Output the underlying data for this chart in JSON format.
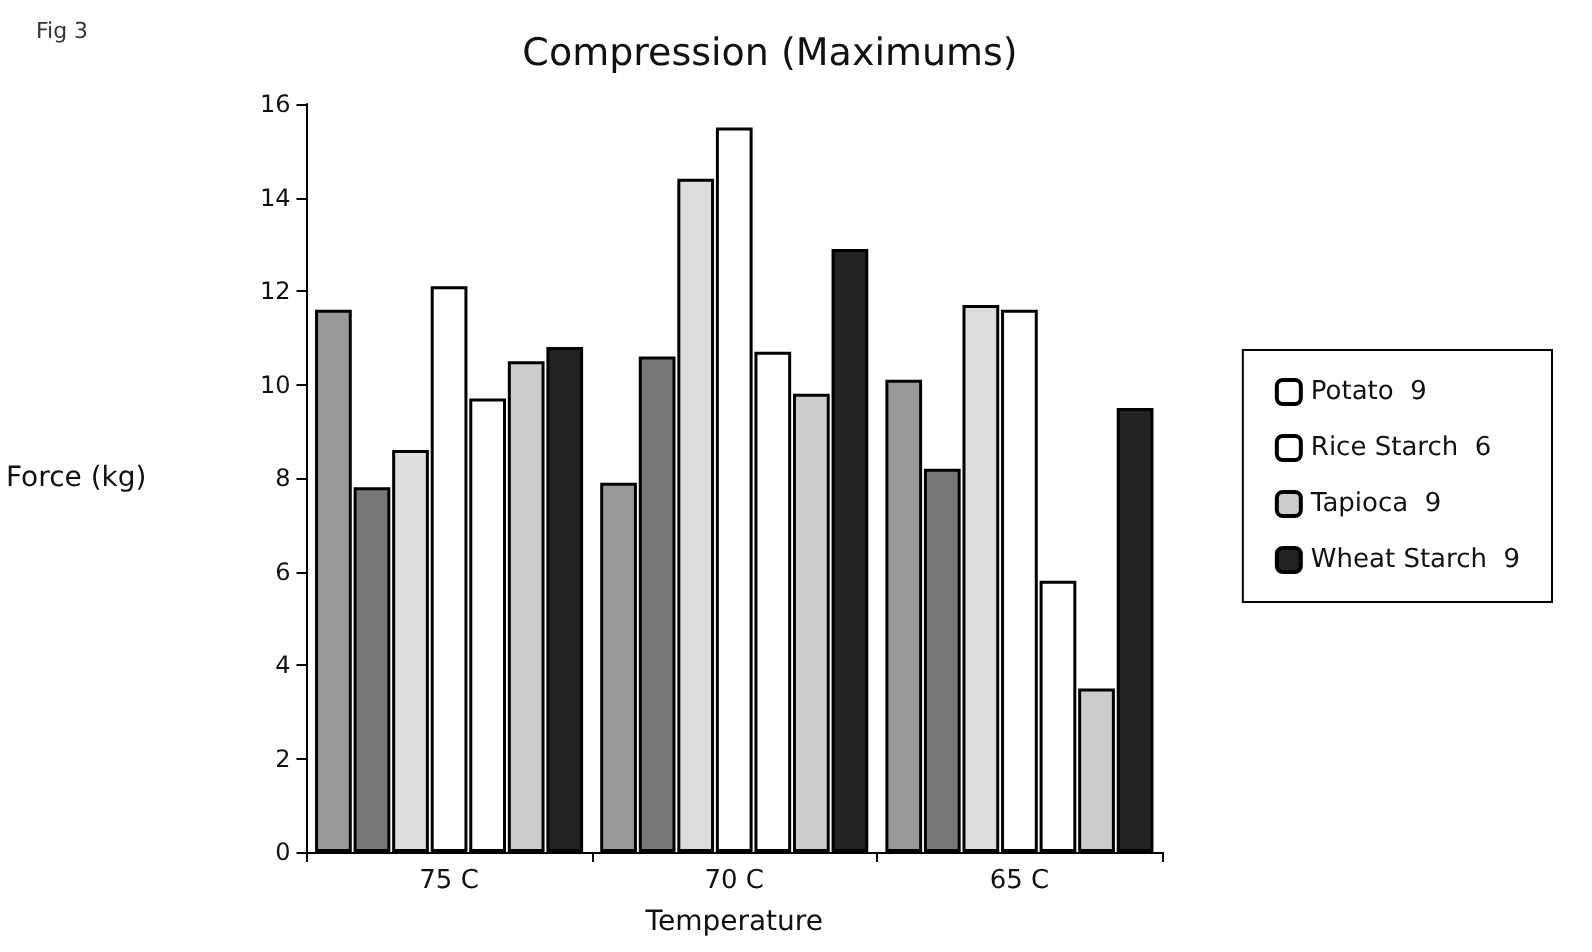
{
  "chart_data": {
    "type": "bar",
    "title": "Compression (Maximums)",
    "xlabel": "Temperature",
    "ylabel": "Force (kg)",
    "annotations": [
      "Fig 3"
    ],
    "categories": [
      "75 C",
      "70 C",
      "65 C"
    ],
    "series": [
      {
        "color": "#999999",
        "values": [
          11.6,
          7.9,
          10.1
        ]
      },
      {
        "color": "#777777",
        "values": [
          7.8,
          10.6,
          8.2
        ]
      },
      {
        "color": "#dddddd",
        "values": [
          8.6,
          14.4,
          11.7
        ]
      },
      {
        "name": "Potato  9",
        "color": "#ffffff",
        "values": [
          12.1,
          15.5,
          11.6
        ]
      },
      {
        "name": "Rice Starch  6",
        "color": "#ffffff",
        "values": [
          9.7,
          10.7,
          5.8
        ]
      },
      {
        "name": "Tapioca  9",
        "color": "#cccccc",
        "values": [
          10.5,
          9.8,
          3.5
        ]
      },
      {
        "name": "Wheat Starch  9",
        "color": "#222222",
        "values": [
          10.8,
          12.9,
          9.5
        ]
      }
    ],
    "ylim": [
      0,
      16
    ],
    "yticks": [
      0,
      2,
      4,
      6,
      8,
      10,
      12,
      14,
      16
    ],
    "grid": false,
    "legend": "right"
  }
}
